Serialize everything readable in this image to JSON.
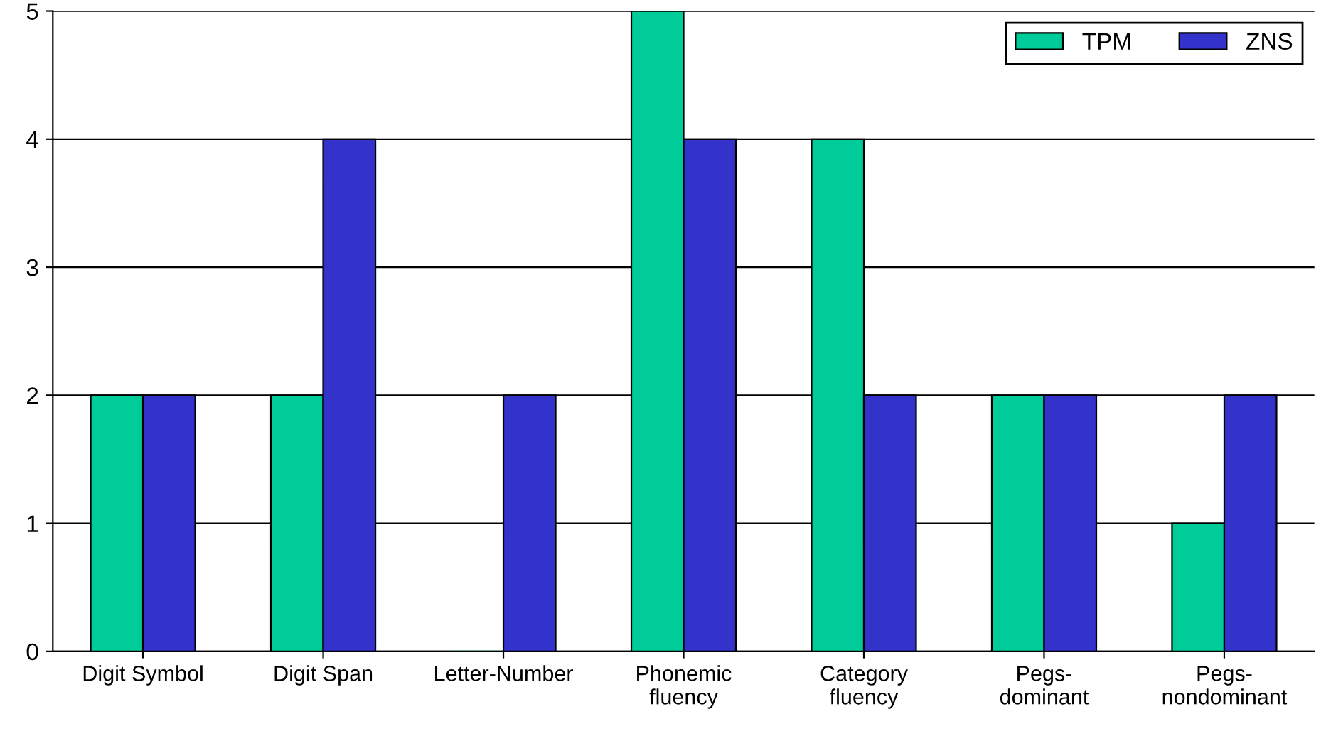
{
  "chart_data": {
    "type": "bar",
    "categories": [
      "Digit Symbol",
      "Digit Span",
      "Letter-Number",
      "Phonemic\nfluency",
      "Category\nfluency",
      "Pegs-\ndominant",
      "Pegs-\nnondominant"
    ],
    "series": [
      {
        "name": "TPM",
        "color": "#00cc99",
        "values": [
          2,
          2,
          0,
          5,
          4,
          2,
          1
        ]
      },
      {
        "name": "ZNS",
        "color": "#3333cc",
        "values": [
          2,
          4,
          2,
          4,
          2,
          2,
          2
        ]
      }
    ],
    "ylim": [
      0,
      5
    ],
    "yticks": [
      0,
      1,
      2,
      3,
      4,
      5
    ],
    "grid": "y",
    "legend": "top right"
  }
}
